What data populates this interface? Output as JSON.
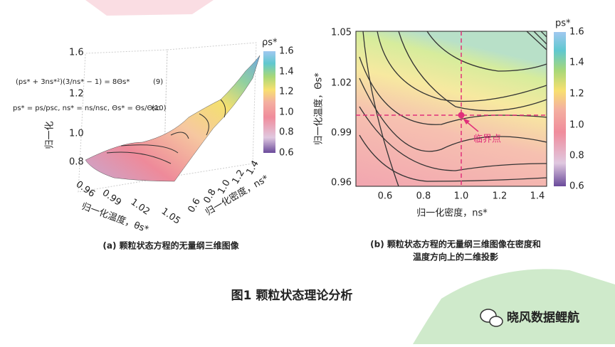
{
  "panel_a": {
    "colorbar_label": "ρs*",
    "colorbar_ticks": [
      "1.6",
      "1.4",
      "1.2",
      "1.0",
      "0.8",
      "0.6"
    ],
    "z_label": "归一化",
    "z_ticks": [
      "1.6",
      "1.2",
      "1.0",
      "0.8"
    ],
    "x_label": "归一化温度，θs*",
    "x_ticks": [
      "0.96",
      "0.99",
      "1.02",
      "1.05"
    ],
    "y_label": "归一化密度，ns*",
    "y_ticks": [
      "1.4",
      "1.2",
      "1.0",
      "0.8",
      "0.6"
    ],
    "equation_9": "(ps* + 3ns*²)(3/ns* − 1) = 8Θs*",
    "equation_9_number": "(9)",
    "equation_10": "ps* = ps/psc, ns* = ns/nsc, Θs* = Θs/Θsc",
    "equation_10_number": "(10)",
    "caption": "(a) 颗粒状态方程的无量纲三维图像"
  },
  "panel_b": {
    "colorbar_label": "ps*",
    "colorbar_ticks": [
      "1.6",
      "1.4",
      "1.2",
      "1.0",
      "0.8",
      "0.6"
    ],
    "y_label": "归一化温度，Θs*",
    "y_ticks": [
      "1.05",
      "1.02",
      "0.99",
      "0.96"
    ],
    "x_label": "归一化密度，ns*",
    "x_ticks": [
      "0.6",
      "0.8",
      "1.0",
      "1.2",
      "1.4"
    ],
    "annotation": "临界点",
    "caption_line_1": "(b) 颗粒状态方程的无量纲三维图像在密度和",
    "caption_line_2": "温度方向上的二维投影"
  },
  "figure_caption": "图1  颗粒状态理论分析",
  "watermark": "晓风数据鲤航"
}
